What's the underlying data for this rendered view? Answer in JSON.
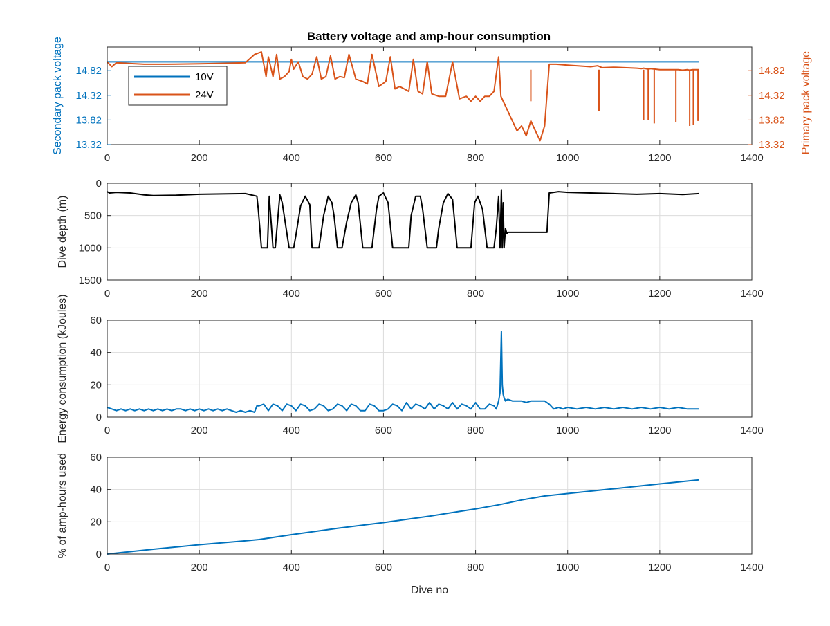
{
  "figure_title": "Battery voltage and amp-hour consumption",
  "colors": {
    "blue": "#0072BD",
    "orange": "#D95319",
    "black": "#000000",
    "grid": "#DCDCDC",
    "axis": "#262626"
  },
  "chart_data": [
    {
      "type": "line",
      "title": "Battery voltage and amp-hour consumption",
      "xlabel": "",
      "ylabel_left": "Secondary pack voltage",
      "ylabel_right": "Primary pack voltage",
      "xlim": [
        0,
        1400
      ],
      "ylim": [
        13.32,
        15.3
      ],
      "ylim_right": [
        13.32,
        15.3
      ],
      "xticks": [
        0,
        200,
        400,
        600,
        800,
        1000,
        1200,
        1400
      ],
      "yticks": [
        "13.32",
        "13.82",
        "14.32",
        "14.82"
      ],
      "yticks_right": [
        "13.32",
        "13.82",
        "14.32",
        "14.82"
      ],
      "grid": false,
      "legend": {
        "placement": "top-left",
        "entries": [
          "10V",
          "24V"
        ]
      },
      "series": [
        {
          "name": "10V",
          "axis": "left",
          "color": "#0072BD",
          "x": [
            0,
            1285
          ],
          "y": [
            15.0,
            15.0
          ]
        },
        {
          "name": "24V",
          "axis": "right",
          "color": "#D95319",
          "x": [
            0,
            10,
            20,
            40,
            80,
            130,
            200,
            260,
            300,
            320,
            335,
            345,
            350,
            360,
            368,
            375,
            385,
            395,
            400,
            405,
            415,
            425,
            435,
            445,
            455,
            465,
            475,
            485,
            495,
            505,
            515,
            525,
            540,
            555,
            565,
            575,
            590,
            605,
            615,
            625,
            635,
            645,
            655,
            665,
            675,
            685,
            695,
            705,
            720,
            735,
            750,
            765,
            780,
            790,
            800,
            810,
            820,
            830,
            840,
            850,
            855,
            860,
            870,
            880,
            890,
            900,
            910,
            920,
            930,
            940,
            950,
            960,
            975,
            1000,
            1050,
            1065,
            1075,
            1100,
            1150,
            1160,
            1165,
            1175,
            1180,
            1190,
            1200,
            1235,
            1240,
            1250,
            1260,
            1265,
            1270,
            1280,
            1285
          ],
          "y": [
            15.0,
            14.9,
            14.98,
            14.97,
            14.95,
            14.95,
            14.96,
            14.97,
            14.98,
            15.15,
            15.2,
            14.7,
            15.1,
            14.7,
            15.15,
            14.65,
            14.7,
            14.8,
            15.05,
            14.85,
            15.0,
            14.7,
            14.65,
            14.75,
            15.1,
            14.65,
            14.7,
            15.12,
            14.65,
            14.7,
            14.68,
            15.15,
            14.65,
            14.6,
            14.55,
            15.15,
            14.5,
            14.6,
            15.1,
            14.45,
            14.5,
            14.45,
            14.4,
            15.05,
            14.4,
            14.35,
            15.0,
            14.35,
            14.3,
            14.3,
            15.0,
            14.25,
            14.3,
            14.2,
            14.3,
            14.2,
            14.3,
            14.3,
            14.4,
            15.1,
            14.3,
            14.2,
            14.0,
            13.8,
            13.6,
            13.7,
            13.5,
            13.8,
            13.6,
            13.4,
            13.7,
            14.95,
            14.95,
            14.93,
            14.9,
            14.92,
            14.88,
            14.89,
            14.87,
            14.86,
            14.87,
            14.85,
            14.86,
            14.85,
            14.84,
            14.84,
            14.84,
            14.83,
            14.84,
            14.83,
            14.84,
            14.84,
            14.84
          ],
          "dips": [
            [
              920,
              14.2
            ],
            [
              1068,
              14.0
            ],
            [
              1165,
              13.82
            ],
            [
              1175,
              13.82
            ],
            [
              1188,
              13.75
            ],
            [
              1235,
              13.78
            ],
            [
              1265,
              13.7
            ],
            [
              1273,
              13.72
            ],
            [
              1283,
              13.8
            ]
          ]
        }
      ]
    },
    {
      "type": "line",
      "title": "",
      "xlabel": "",
      "ylabel": "Dive depth (m)",
      "xlim": [
        0,
        1400
      ],
      "ylim": [
        0,
        1500
      ],
      "y_reversed": true,
      "xticks": [
        0,
        200,
        400,
        600,
        800,
        1000,
        1200,
        1400
      ],
      "yticks": [
        0,
        500,
        1000,
        1500
      ],
      "grid": true,
      "series": [
        {
          "name": "",
          "color": "#000000",
          "x": [
            0,
            5,
            20,
            50,
            80,
            100,
            150,
            200,
            250,
            300,
            325,
            328,
            335,
            340,
            348,
            352,
            360,
            365,
            375,
            380,
            395,
            400,
            405,
            410,
            420,
            430,
            440,
            445,
            455,
            460,
            470,
            480,
            488,
            493,
            500,
            510,
            520,
            530,
            540,
            545,
            555,
            565,
            575,
            585,
            590,
            600,
            610,
            620,
            630,
            640,
            650,
            655,
            660,
            670,
            680,
            685,
            695,
            700,
            705,
            710,
            715,
            720,
            730,
            740,
            750,
            760,
            770,
            780,
            790,
            798,
            805,
            815,
            825,
            835,
            840,
            845,
            850,
            853,
            856,
            858,
            860,
            862,
            865,
            868,
            870,
            875,
            890,
            900,
            920,
            940,
            948,
            955,
            960,
            980,
            1000,
            1050,
            1100,
            1150,
            1200,
            1250,
            1285
          ],
          "y": [
            130,
            150,
            140,
            150,
            180,
            190,
            185,
            170,
            165,
            160,
            200,
            400,
            1000,
            1000,
            1000,
            200,
            1000,
            1000,
            180,
            300,
            1000,
            1000,
            1000,
            800,
            350,
            200,
            330,
            1000,
            1000,
            1000,
            500,
            200,
            300,
            520,
            1000,
            1000,
            600,
            300,
            180,
            300,
            1000,
            1000,
            1000,
            400,
            200,
            150,
            300,
            1000,
            1000,
            1000,
            1000,
            1000,
            500,
            200,
            200,
            400,
            1000,
            1000,
            1000,
            1000,
            1000,
            700,
            300,
            160,
            250,
            1000,
            1000,
            1000,
            1000,
            300,
            200,
            400,
            1000,
            1000,
            1000,
            700,
            200,
            1000,
            100,
            1000,
            300,
            1000,
            700,
            780,
            760,
            760,
            760,
            760,
            760,
            760,
            760,
            760,
            150,
            130,
            140,
            150,
            160,
            170,
            160,
            175,
            160
          ]
        }
      ]
    },
    {
      "type": "line",
      "title": "",
      "xlabel": "",
      "ylabel": "Energy consumption (kJoules)",
      "xlim": [
        0,
        1400
      ],
      "ylim": [
        0,
        60
      ],
      "xticks": [
        0,
        200,
        400,
        600,
        800,
        1000,
        1200,
        1400
      ],
      "yticks": [
        0,
        20,
        40,
        60
      ],
      "grid": true,
      "series": [
        {
          "name": "",
          "color": "#0072BD",
          "x": [
            0,
            10,
            20,
            30,
            40,
            50,
            60,
            70,
            80,
            90,
            100,
            110,
            120,
            130,
            140,
            150,
            160,
            170,
            180,
            190,
            200,
            210,
            220,
            230,
            240,
            250,
            260,
            270,
            280,
            290,
            300,
            310,
            320,
            325,
            330,
            340,
            350,
            360,
            370,
            380,
            390,
            400,
            410,
            420,
            430,
            440,
            450,
            460,
            470,
            480,
            490,
            500,
            510,
            520,
            530,
            540,
            550,
            560,
            570,
            580,
            590,
            600,
            610,
            620,
            630,
            640,
            650,
            660,
            670,
            680,
            690,
            700,
            710,
            720,
            730,
            740,
            750,
            760,
            770,
            780,
            790,
            800,
            810,
            820,
            830,
            840,
            845,
            850,
            853,
            856,
            858,
            860,
            862,
            865,
            870,
            880,
            890,
            900,
            910,
            920,
            930,
            940,
            950,
            960,
            970,
            980,
            990,
            1000,
            1020,
            1040,
            1060,
            1080,
            1100,
            1120,
            1140,
            1160,
            1180,
            1200,
            1220,
            1240,
            1260,
            1285
          ],
          "y": [
            6,
            5,
            4,
            5,
            4,
            5,
            4,
            5,
            4,
            5,
            4,
            5,
            4,
            5,
            4,
            5,
            5,
            4,
            5,
            4,
            5,
            4,
            5,
            4,
            5,
            4,
            5,
            4,
            3,
            4,
            3,
            4,
            3,
            7,
            7,
            8,
            4,
            8,
            7,
            4,
            8,
            7,
            4,
            8,
            7,
            4,
            5,
            8,
            7,
            4,
            5,
            8,
            7,
            4,
            8,
            7,
            4,
            4,
            8,
            7,
            4,
            4,
            5,
            8,
            7,
            4,
            9,
            5,
            8,
            7,
            5,
            9,
            5,
            8,
            7,
            5,
            9,
            5,
            8,
            7,
            5,
            9,
            5,
            5,
            8,
            7,
            5,
            10,
            15,
            53,
            20,
            14,
            12,
            10,
            11,
            10,
            10,
            10,
            9,
            10,
            10,
            10,
            10,
            8,
            5,
            6,
            5,
            6,
            5,
            6,
            5,
            6,
            5,
            6,
            5,
            6,
            5,
            6,
            5,
            6,
            5,
            5
          ]
        }
      ]
    },
    {
      "type": "line",
      "title": "",
      "xlabel": "Dive no",
      "ylabel": "% of amp-hours used",
      "xlim": [
        0,
        1400
      ],
      "ylim": [
        0,
        60
      ],
      "xticks": [
        0,
        200,
        400,
        600,
        800,
        1000,
        1200,
        1400
      ],
      "yticks": [
        0,
        20,
        40,
        60
      ],
      "grid": true,
      "series": [
        {
          "name": "",
          "color": "#0072BD",
          "x": [
            0,
            100,
            200,
            300,
            330,
            400,
            500,
            600,
            700,
            800,
            850,
            900,
            950,
            1000,
            1100,
            1200,
            1285
          ],
          "y": [
            0,
            3,
            5.8,
            8.2,
            9,
            12,
            16,
            19.5,
            23.5,
            28,
            30.5,
            33.5,
            36,
            37.5,
            40.5,
            43.5,
            46
          ]
        }
      ]
    }
  ]
}
